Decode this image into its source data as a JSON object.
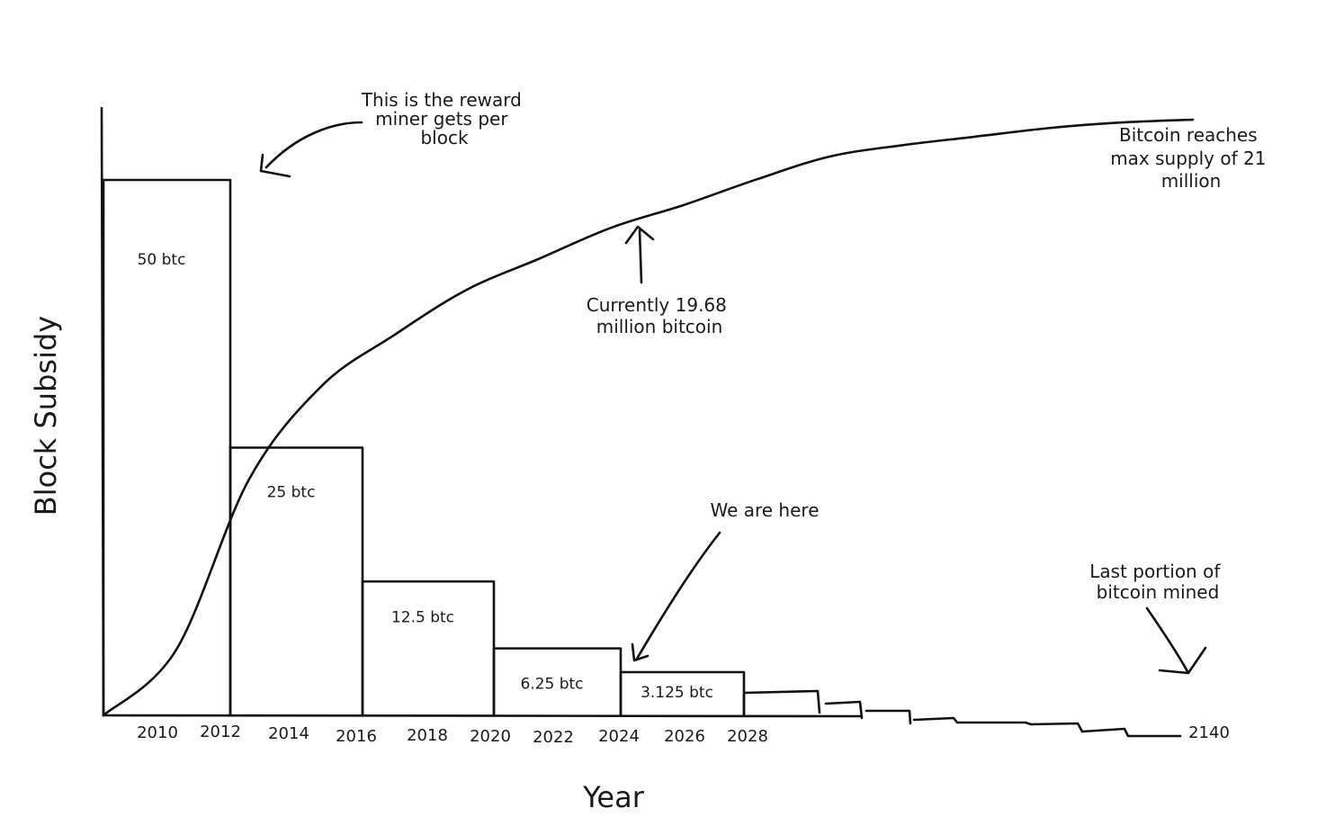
{
  "chart_data": {
    "type": "bar",
    "xlabel": "Year",
    "ylabel": "Block Subsidy",
    "x_ticks": [
      "2010",
      "2012",
      "2014",
      "2016",
      "2018",
      "2020",
      "2022",
      "2024",
      "2026",
      "2028",
      "2140"
    ],
    "bars": [
      {
        "label": "50 btc",
        "start": 2009,
        "end": 2012,
        "value": 50
      },
      {
        "label": "25 btc",
        "start": 2012,
        "end": 2016,
        "value": 25
      },
      {
        "label": "12.5 btc",
        "start": 2016,
        "end": 2020,
        "value": 12.5
      },
      {
        "label": "6.25 btc",
        "start": 2020,
        "end": 2024,
        "value": 6.25
      },
      {
        "label": "3.125 btc",
        "start": 2024,
        "end": 2028,
        "value": 3.125
      }
    ],
    "series": [
      {
        "values": [
          0,
          2.3,
          8.3,
          11.6,
          13.4,
          15.0,
          16.1,
          17.2,
          18.0,
          18.9,
          19.7,
          20.1,
          20.4,
          20.7,
          20.9,
          21
        ]
      }
    ],
    "annotations": [
      "This is the reward miner gets per block",
      "Currently 19.68 million bitcoin",
      "Bitcoin reaches max supply of 21 million",
      "We are here",
      "Last portion of bitcoin mined"
    ]
  }
}
